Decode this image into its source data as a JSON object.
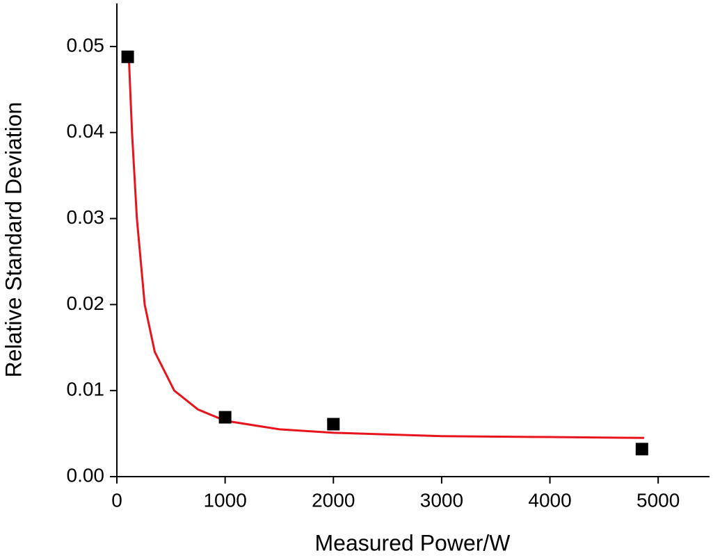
{
  "chart_data": {
    "type": "scatter",
    "x_label": "Measured Power/W",
    "y_label": "Relative Standard Deviation",
    "xlim": [
      0,
      5500
    ],
    "ylim": [
      0,
      0.055
    ],
    "xticks": [
      0,
      1000,
      2000,
      3000,
      4000,
      5000
    ],
    "yticks": [
      {
        "value": 0,
        "label": "0.00"
      },
      0.01,
      0.02,
      0.03,
      0.04,
      0.05
    ],
    "points": {
      "color": "#000000",
      "x": [
        100,
        1000,
        2000,
        4850
      ],
      "values": [
        0.0488,
        0.0069,
        0.0061,
        0.0032
      ]
    },
    "fit": {
      "color": "#e8141b",
      "x": [
        110,
        140,
        185,
        257,
        350,
        530,
        750,
        1000,
        1500,
        2000,
        3000,
        4000,
        4870
      ],
      "values": [
        0.049,
        0.04,
        0.03,
        0.02,
        0.0145,
        0.01,
        0.0078,
        0.0065,
        0.0055,
        0.0051,
        0.0047,
        0.0046,
        0.0045
      ]
    }
  }
}
